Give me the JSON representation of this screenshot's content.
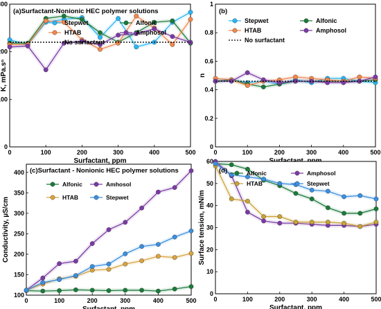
{
  "chart_data": [
    {
      "type": "line",
      "title": "(a)Surfactant-Nonionic HEC polymer solutions",
      "xlabel": "Surfactant, ppm",
      "ylabel": "K, mPa.sⁿ",
      "xlim": [
        0,
        500
      ],
      "ylim": [
        0,
        300
      ],
      "xticks": [
        "0",
        "100",
        "200",
        "300",
        "400",
        "500"
      ],
      "yticks": [
        "0",
        "100",
        "200",
        "300"
      ],
      "x": [
        0,
        50,
        100,
        150,
        200,
        250,
        300,
        350,
        400,
        450,
        500
      ],
      "legend_position": "top",
      "series": [
        {
          "name": "Stepwet",
          "color": "#29b6f6",
          "marker": "circle",
          "values": [
            225,
            215,
            262,
            268,
            272,
            230,
            270,
            210,
            220,
            262,
            283
          ]
        },
        {
          "name": "Alfonic",
          "color": "#1b7a3a",
          "marker": "circle",
          "values": [
            218,
            218,
            270,
            275,
            268,
            240,
            220,
            240,
            262,
            265,
            218
          ]
        },
        {
          "name": "HTAB",
          "color": "#f2874b",
          "marker": "circle",
          "values": [
            215,
            215,
            265,
            262,
            225,
            205,
            218,
            275,
            250,
            215,
            268
          ]
        },
        {
          "name": "Amphosol",
          "color": "#7b3aa6",
          "marker": "circle",
          "values": [
            210,
            212,
            162,
            218,
            222,
            215,
            235,
            238,
            248,
            232,
            220
          ]
        },
        {
          "name": "No surfactant",
          "color": "#000000",
          "style": "dotted",
          "values": [
            220,
            220,
            220,
            220,
            220,
            220,
            220,
            220,
            220,
            220,
            220
          ]
        }
      ]
    },
    {
      "type": "line",
      "title": "(b)",
      "xlabel": "Surfactant, ppm",
      "ylabel": "n",
      "xlim": [
        0,
        500
      ],
      "ylim": [
        0,
        1
      ],
      "xticks": [
        "0",
        "100",
        "200",
        "300",
        "400",
        "500"
      ],
      "yticks": [
        "0",
        "0.2",
        "0.4",
        "0.6",
        "0.8",
        "1"
      ],
      "x": [
        0,
        50,
        100,
        150,
        200,
        250,
        300,
        350,
        400,
        450,
        500
      ],
      "legend_position": "top",
      "series": [
        {
          "name": "Stepwet",
          "color": "#29b6f6",
          "marker": "circle",
          "values": [
            0.46,
            0.47,
            0.45,
            0.46,
            0.44,
            0.47,
            0.45,
            0.48,
            0.48,
            0.46,
            0.45
          ]
        },
        {
          "name": "Alfonic",
          "color": "#1b7a3a",
          "marker": "circle",
          "values": [
            0.46,
            0.47,
            0.44,
            0.42,
            0.44,
            0.46,
            0.46,
            0.46,
            0.46,
            0.46,
            0.47
          ]
        },
        {
          "name": "HTAB",
          "color": "#f2874b",
          "marker": "circle",
          "values": [
            0.48,
            0.47,
            0.43,
            0.46,
            0.47,
            0.49,
            0.48,
            0.47,
            0.46,
            0.49,
            0.48
          ]
        },
        {
          "name": "Amphosol",
          "color": "#7b3aa6",
          "marker": "circle",
          "values": [
            0.46,
            0.46,
            0.52,
            0.47,
            0.45,
            0.46,
            0.46,
            0.45,
            0.45,
            0.46,
            0.49
          ]
        },
        {
          "name": "No surfactant",
          "color": "#000000",
          "style": "dotted",
          "values": [
            0.46,
            0.46,
            0.46,
            0.46,
            0.46,
            0.46,
            0.46,
            0.46,
            0.46,
            0.46,
            0.46
          ]
        }
      ]
    },
    {
      "type": "line",
      "title": "(c)Surfactant - Nonionic HEC polymer solutions",
      "xlabel": "Surfactant, ppm",
      "ylabel": "Conductivity, µS/cm",
      "xlim": [
        0,
        500
      ],
      "ylim": [
        100,
        420
      ],
      "xticks": [
        "0",
        "100",
        "200",
        "300",
        "400",
        "500"
      ],
      "yticks": [
        "100",
        "150",
        "200",
        "250",
        "300",
        "350",
        "400"
      ],
      "x": [
        0,
        50,
        100,
        150,
        200,
        250,
        300,
        350,
        400,
        450,
        500
      ],
      "legend_position": "top-left",
      "series": [
        {
          "name": "Alfonic",
          "color": "#1b7a3a",
          "marker": "circle",
          "values": [
            111,
            110,
            111,
            113,
            112,
            111,
            112,
            112,
            110,
            115,
            121
          ]
        },
        {
          "name": "Amhosol",
          "color": "#7b3aa6",
          "marker": "circle",
          "values": [
            112,
            142,
            177,
            183,
            226,
            260,
            278,
            313,
            352,
            363,
            404
          ]
        },
        {
          "name": "HTAB",
          "color": "#d9a33f",
          "marker": "circle",
          "values": [
            112,
            127,
            140,
            146,
            161,
            163,
            176,
            184,
            195,
            192,
            202
          ]
        },
        {
          "name": "Stepwet",
          "color": "#3a8fe0",
          "marker": "circle",
          "values": [
            112,
            131,
            138,
            148,
            170,
            176,
            201,
            219,
            224,
            242,
            257
          ]
        }
      ]
    },
    {
      "type": "line",
      "title": "(d)",
      "xlabel": "Surfactant, ppm",
      "ylabel": "Surface tension, mN/m",
      "xlim": [
        0,
        500
      ],
      "ylim": [
        0,
        60
      ],
      "xticks": [
        "0",
        "100",
        "200",
        "300",
        "400",
        "500"
      ],
      "yticks": [
        "0",
        "10",
        "20",
        "30",
        "40",
        "50",
        "60"
      ],
      "x": [
        0,
        50,
        100,
        150,
        200,
        250,
        300,
        350,
        400,
        450,
        500
      ],
      "legend_position": "top",
      "series": [
        {
          "name": "Alfonic",
          "color": "#1b7a3a",
          "marker": "circle",
          "values": [
            59,
            58.5,
            56.5,
            51.5,
            49,
            45.5,
            43,
            39,
            36.5,
            36.5,
            38.5
          ]
        },
        {
          "name": "Amphosol",
          "color": "#7b3aa6",
          "marker": "circle",
          "values": [
            60,
            53.5,
            37,
            33,
            32,
            32,
            31.5,
            31,
            31,
            30.5,
            31.5
          ]
        },
        {
          "name": "HTAB",
          "color": "#c9a237",
          "marker": "circle",
          "values": [
            58,
            43,
            42,
            35,
            35,
            32.5,
            32.5,
            32.5,
            32,
            30.5,
            32.5
          ]
        },
        {
          "name": "Stepwet",
          "color": "#3a8fe0",
          "marker": "circle",
          "values": [
            59,
            54,
            53,
            52,
            50,
            49.5,
            47,
            46.5,
            44,
            44.5,
            43
          ]
        }
      ]
    }
  ]
}
